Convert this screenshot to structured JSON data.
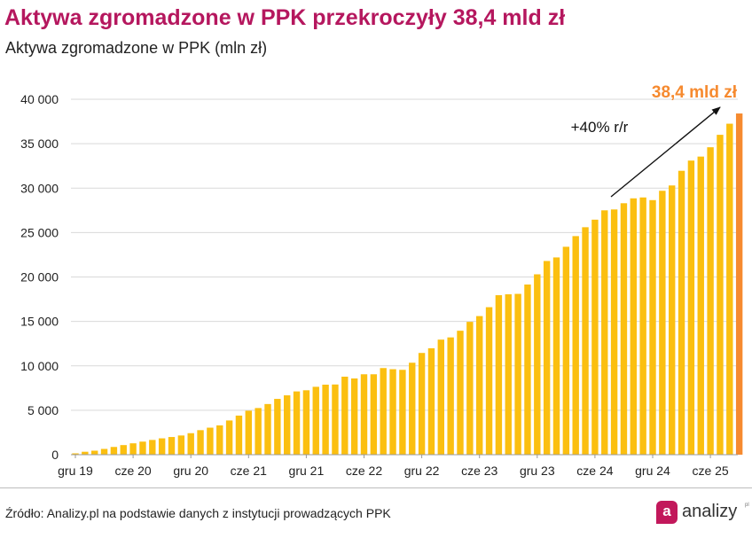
{
  "header": {
    "title": "Aktywa zgromadzone w PPK przekroczyły 38,4 mld zł",
    "subtitle": "Aktywa zgromadzone w PPK (mln zł)"
  },
  "footer": {
    "source": "Źródło: Analizy.pl na podstawie danych z instytucji prowadzących PPK",
    "logo_glyph": "a",
    "logo_text": "analizy",
    "logo_suffix": "pl"
  },
  "colors": {
    "bar": "#fbbf10",
    "bar_highlight": "#f68a2f",
    "title": "#b5175e",
    "highlight_label": "#f68a2f"
  },
  "chart_data": {
    "type": "bar",
    "ylim": [
      0,
      40000
    ],
    "y_ticks": [
      "0",
      "5 000",
      "10 000",
      "15 000",
      "20 000",
      "25 000",
      "30 000",
      "35 000",
      "40 000"
    ],
    "y_tick_values": [
      0,
      5000,
      10000,
      15000,
      20000,
      25000,
      30000,
      35000,
      40000
    ],
    "x_tick_labels": [
      "gru 19",
      "cze 20",
      "gru 20",
      "cze 21",
      "gru 21",
      "cze 22",
      "gru 22",
      "cze 23",
      "gru 23",
      "cze 24",
      "gru 24",
      "cze 25"
    ],
    "grid": true,
    "values": [
      150,
      330,
      450,
      650,
      870,
      1080,
      1280,
      1470,
      1660,
      1840,
      1990,
      2160,
      2420,
      2760,
      3040,
      3300,
      3850,
      4400,
      4950,
      5250,
      5700,
      6280,
      6680,
      7120,
      7250,
      7640,
      7880,
      7900,
      8780,
      8580,
      9050,
      9050,
      9750,
      9620,
      9550,
      10350,
      11450,
      11980,
      12950,
      13200,
      13950,
      14950,
      15600,
      16600,
      17950,
      18050,
      18100,
      19150,
      20300,
      21800,
      22200,
      23400,
      24600,
      25600,
      26450,
      27500,
      27600,
      28300,
      28850,
      28950,
      28650,
      29700,
      30300,
      31950,
      33100,
      33550,
      34600,
      36000,
      37250,
      38400
    ],
    "highlight_index": 69,
    "annotations": {
      "growth": "+40% r/r",
      "last_value": "38,4 mld zł"
    }
  }
}
